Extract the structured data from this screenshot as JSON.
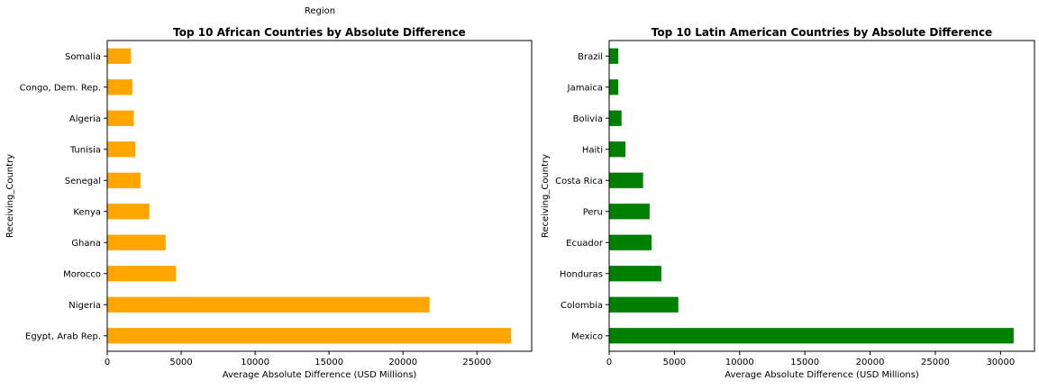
{
  "header": {
    "region_label": "Region"
  },
  "chart_data": [
    {
      "type": "bar",
      "orientation": "horizontal",
      "title": "Top 10 African Countries by Absolute Difference",
      "xlabel": "Average Absolute Difference (USD Millions)",
      "ylabel": "Receiving_Country",
      "categories": [
        "Egypt, Arab Rep.",
        "Nigeria",
        "Morocco",
        "Ghana",
        "Kenya",
        "Senegal",
        "Tunisia",
        "Algeria",
        "Congo, Dem. Rep.",
        "Somalia"
      ],
      "values": [
        27300,
        21800,
        4650,
        3950,
        2850,
        2250,
        1900,
        1800,
        1700,
        1600
      ],
      "xlim": [
        0,
        28700
      ],
      "xticks": [
        0,
        5000,
        10000,
        15000,
        20000,
        25000
      ],
      "color": "#ffa500",
      "grid": false
    },
    {
      "type": "bar",
      "orientation": "horizontal",
      "title": "Top 10 Latin American Countries by Absolute Difference",
      "xlabel": "Average Absolute Difference (USD Millions)",
      "ylabel": "Receiving_Country",
      "categories": [
        "Mexico",
        "Colombia",
        "Honduras",
        "Ecuador",
        "Peru",
        "Costa Rica",
        "Haiti",
        "Bolivia",
        "Jamaica",
        "Brazil"
      ],
      "values": [
        31000,
        5300,
        4000,
        3250,
        3100,
        2600,
        1250,
        950,
        700,
        700
      ],
      "xlim": [
        0,
        32600
      ],
      "xticks": [
        0,
        5000,
        10000,
        15000,
        20000,
        25000,
        30000
      ],
      "color": "#008000",
      "grid": false
    }
  ]
}
